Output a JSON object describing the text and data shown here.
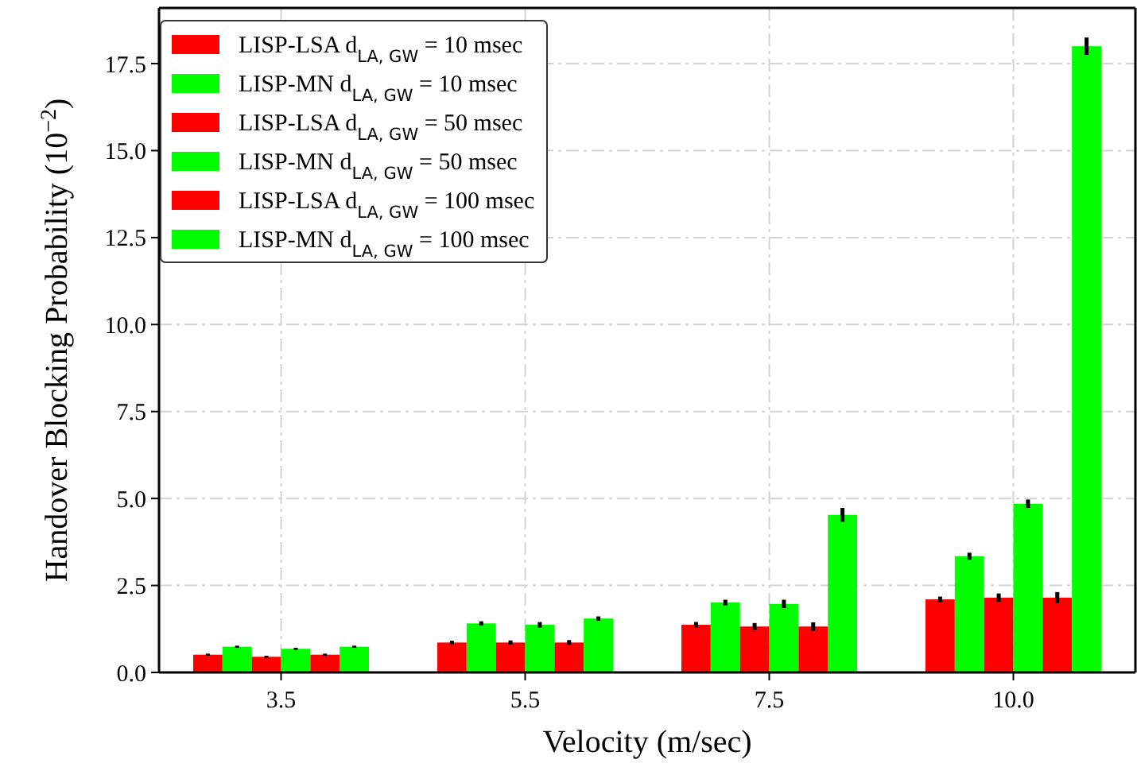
{
  "chart_data": {
    "type": "bar",
    "xlabel": "Velocity (m/sec)",
    "ylabel": "Handover Blocking Probability (10$^{−2}$)",
    "categories": [
      "3.5",
      "5.5",
      "7.5",
      "10.0"
    ],
    "series": [
      {
        "name": "LISP-LSA d$_{LA, GW}$ = 10 msec",
        "color": "#ff0000",
        "values": [
          0.51,
          0.86,
          1.37,
          2.1
        ],
        "errors": [
          0.03,
          0.05,
          0.08,
          0.08
        ]
      },
      {
        "name": "LISP-MN d$_{LA, GW}$ = 10 msec",
        "color": "#00ff00",
        "values": [
          0.74,
          1.41,
          2.01,
          3.34
        ],
        "errors": [
          0.03,
          0.06,
          0.08,
          0.1
        ]
      },
      {
        "name": "LISP-LSA d$_{LA, GW}$ = 50 msec",
        "color": "#ff0000",
        "values": [
          0.45,
          0.86,
          1.32,
          2.15
        ],
        "errors": [
          0.03,
          0.06,
          0.1,
          0.12
        ]
      },
      {
        "name": "LISP-MN d$_{LA, GW}$ = 50 msec",
        "color": "#00ff00",
        "values": [
          0.68,
          1.37,
          1.97,
          4.85
        ],
        "errors": [
          0.03,
          0.08,
          0.12,
          0.12
        ]
      },
      {
        "name": "LISP-LSA d$_{LA, GW}$ = 100 msec",
        "color": "#ff0000",
        "values": [
          0.51,
          0.86,
          1.32,
          2.15
        ],
        "errors": [
          0.03,
          0.07,
          0.12,
          0.16
        ]
      },
      {
        "name": "LISP-MN d$_{LA, GW}$ = 100 msec",
        "color": "#00ff00",
        "values": [
          0.74,
          1.55,
          4.53,
          18.0
        ],
        "errors": [
          0.03,
          0.06,
          0.2,
          0.25
        ]
      }
    ],
    "ylim": [
      0,
      19.1
    ],
    "yticks": [
      {
        "value": 0,
        "label": "0.0"
      },
      {
        "value": 2.5,
        "label": "2.5"
      },
      {
        "value": 5,
        "label": "5.0"
      },
      {
        "value": 7.5,
        "label": "7.5"
      },
      {
        "value": 10,
        "label": "10.0"
      },
      {
        "value": 12.5,
        "label": "12.5"
      },
      {
        "value": 15,
        "label": "15.0"
      },
      {
        "value": 17.5,
        "label": "17.5"
      }
    ],
    "grid": true,
    "legend": "top left"
  }
}
